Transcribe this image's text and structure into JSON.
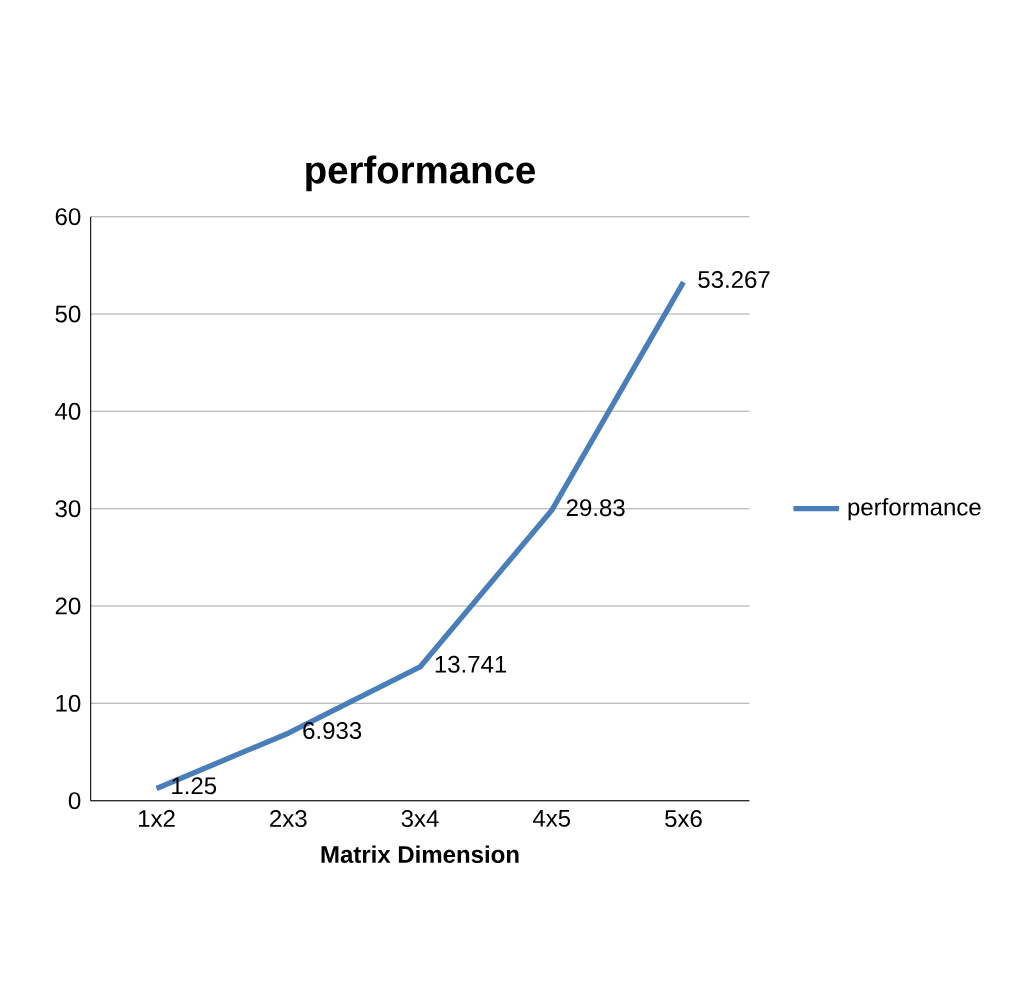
{
  "chart_data": {
    "type": "line",
    "title": "performance",
    "xlabel": "Matrix Dimension",
    "categories": [
      "1x2",
      "2x3",
      "3x4",
      "4x5",
      "5x6"
    ],
    "series": [
      {
        "name": "performance",
        "color": "#4a7ebb",
        "values": [
          1.25,
          6.933,
          13.741,
          29.83,
          53.267
        ],
        "value_labels": [
          "1.25",
          "6.933",
          "13.741",
          "29.83",
          "53.267"
        ]
      }
    ],
    "ylim": [
      0,
      60
    ],
    "yticks": [
      0,
      10,
      20,
      30,
      40,
      50,
      60
    ],
    "grid": "y",
    "legend": "right",
    "marker": "none",
    "line_style": "solid"
  }
}
